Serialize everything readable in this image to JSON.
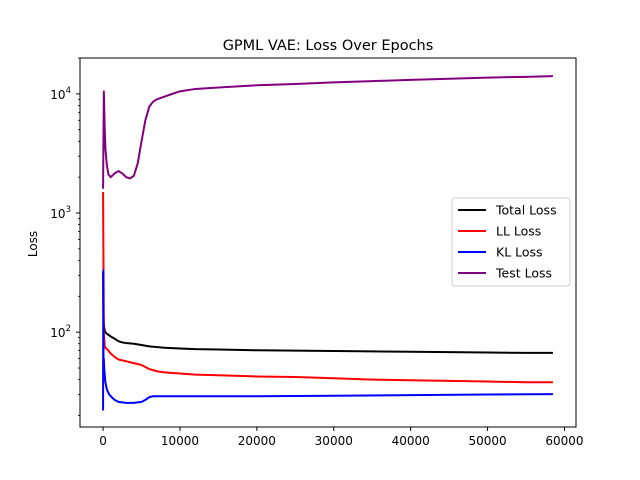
{
  "chart_data": {
    "type": "line",
    "title": "GPML VAE: Loss Over Epochs",
    "xlabel": "",
    "ylabel": "Loss",
    "yscale": "log",
    "xlim": [
      -3000,
      61500
    ],
    "ylim": [
      16,
      20000
    ],
    "xticks": [
      0,
      10000,
      20000,
      30000,
      40000,
      50000,
      60000
    ],
    "xtick_labels": [
      "0",
      "10000",
      "20000",
      "30000",
      "40000",
      "50000",
      "60000"
    ],
    "yticks": [
      100,
      1000,
      10000
    ],
    "ytick_labels": [
      {
        "base": "10",
        "exp": "2"
      },
      {
        "base": "10",
        "exp": "3"
      },
      {
        "base": "10",
        "exp": "4"
      }
    ],
    "legend_position": "center-right",
    "grid": false,
    "series": [
      {
        "name": "Total Loss",
        "color": "#000000",
        "x": [
          0,
          50,
          100,
          200,
          300,
          500,
          700,
          1000,
          1500,
          2000,
          2500,
          3000,
          4000,
          5000,
          6000,
          7000,
          8000,
          10000,
          12000,
          15000,
          20000,
          25000,
          30000,
          35000,
          40000,
          45000,
          50000,
          55000,
          58500
        ],
        "y": [
          320,
          140,
          115,
          104,
          100,
          97,
          95,
          92,
          88,
          84,
          82,
          81,
          80,
          78,
          76,
          75,
          74,
          73,
          72,
          71.5,
          70.5,
          70,
          69.5,
          69,
          68.5,
          68,
          67.5,
          67,
          67
        ]
      },
      {
        "name": "LL Loss",
        "color": "#ff0000",
        "x": [
          0,
          50,
          100,
          200,
          300,
          500,
          700,
          1000,
          1500,
          2000,
          2500,
          3000,
          4000,
          5000,
          5500,
          6000,
          6500,
          7000,
          8000,
          10000,
          12000,
          15000,
          20000,
          25000,
          30000,
          35000,
          40000,
          45000,
          50000,
          55000,
          58500
        ],
        "y": [
          1500,
          400,
          100,
          78,
          74,
          72,
          70,
          66,
          62,
          59,
          58,
          57,
          55,
          53,
          51,
          49,
          48,
          47,
          46,
          45,
          44,
          43.5,
          42.5,
          42,
          41,
          40,
          39.5,
          39,
          38.5,
          38,
          38
        ]
      },
      {
        "name": "KL Loss",
        "color": "#0000ff",
        "x": [
          0,
          30,
          60,
          100,
          150,
          200,
          300,
          500,
          800,
          1000,
          1500,
          2000,
          3000,
          4000,
          5000,
          5500,
          6000,
          6500,
          7000,
          8000,
          10000,
          15000,
          20000,
          30000,
          40000,
          50000,
          58500
        ],
        "y": [
          22,
          330,
          40,
          60,
          50,
          45,
          38,
          33,
          30,
          29,
          27,
          26,
          25.5,
          25.5,
          26,
          27,
          28.5,
          29,
          29,
          29,
          29,
          29,
          29,
          29.3,
          29.6,
          30,
          30.2
        ]
      },
      {
        "name": "Test Loss",
        "color": "#800080",
        "x": [
          0,
          100,
          200,
          300,
          500,
          700,
          1000,
          1500,
          2000,
          2500,
          3000,
          3500,
          4000,
          4500,
          5000,
          5500,
          6000,
          6500,
          7000,
          8000,
          9000,
          10000,
          12000,
          15000,
          20000,
          25000,
          30000,
          35000,
          40000,
          45000,
          50000,
          55000,
          58500
        ],
        "y": [
          1600,
          10500,
          5500,
          3500,
          2500,
          2100,
          2000,
          2150,
          2250,
          2150,
          2000,
          1950,
          2050,
          2600,
          4000,
          6000,
          7800,
          8600,
          9000,
          9500,
          10000,
          10500,
          11000,
          11300,
          11800,
          12100,
          12500,
          12800,
          13100,
          13400,
          13700,
          13900,
          14100
        ]
      }
    ]
  }
}
